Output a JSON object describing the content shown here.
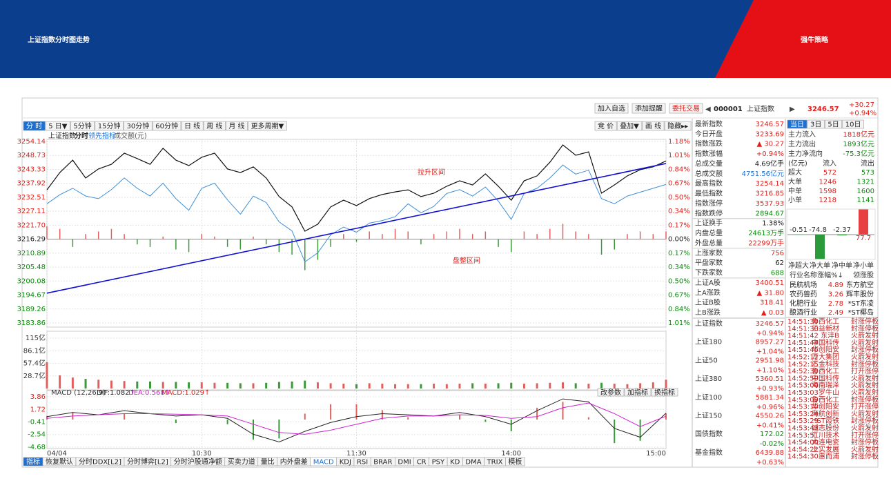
{
  "header": {
    "title": "上证指数分时图走势",
    "brand": "强牛策略"
  },
  "toolbar": {
    "buttons": [
      "加入自选",
      "添加提醒",
      "委托交易"
    ],
    "code": "000001",
    "name": "上证指数",
    "price": "3246.57",
    "change": "+30.27",
    "pct": "+0.94%"
  },
  "periods": [
    "分 时",
    "5 日▼",
    "5分钟",
    "15分钟",
    "30分钟",
    "60分钟",
    "日 线",
    "周 线",
    "月 线",
    "更多周期▼"
  ],
  "tools": [
    "竞 价",
    "叠加▼",
    "画 线",
    "隐藏▸▸"
  ],
  "legend": [
    "上证指数",
    "分时",
    "领先指标",
    "成交额(元)"
  ],
  "chart_data": {
    "type": "line",
    "categories": [
      "04/04",
      null,
      null,
      null,
      null,
      null,
      null,
      null,
      null,
      null,
      null,
      null,
      "10:30",
      null,
      null,
      null,
      null,
      null,
      null,
      null,
      null,
      null,
      null,
      null,
      "11:30",
      null,
      null,
      null,
      null,
      null,
      null,
      null,
      null,
      null,
      null,
      null,
      "14:00",
      null,
      null,
      null,
      null,
      null,
      null,
      null,
      null,
      null,
      null,
      null,
      "15:00"
    ],
    "ylim": [
      3183.86,
      3254.14
    ],
    "yticks": [
      3254.14,
      3248.73,
      3243.33,
      3237.92,
      3232.51,
      3227.11,
      {
        "value": 3221.7,
        "label": "3221.70"
      },
      3216.29,
      3210.89,
      3205.48,
      3200.08,
      3194.67,
      3189.26,
      3183.86
    ],
    "pct_ticks": [
      "1.18%",
      "1.01%",
      "0.84%",
      "0.67%",
      "0.50%",
      "0.34%",
      "0.17%",
      "0.00%",
      "0.17%",
      "0.34%",
      "0.50%",
      "0.67%",
      "0.84%",
      "1.01%"
    ],
    "series": [
      {
        "name": "上证指数",
        "color": "#111111",
        "values": [
          3235.4,
          3242.1,
          3246.9,
          3240.0,
          3243.5,
          3245.3,
          3249.6,
          3247.5,
          3245.3,
          3251.5,
          3246.9,
          3244.8,
          3248.0,
          3249.6,
          3243.5,
          3242.1,
          3244.3,
          3240.0,
          3232.8,
          3228.8,
          3219.4,
          3222.1,
          3228.8,
          3231.4,
          3229.3,
          3232.0,
          3233.6,
          3234.6,
          3235.4,
          3232.8,
          3234.1,
          3236.8,
          3238.9,
          3237.3,
          3241.6,
          3236.8,
          3231.4,
          3238.9,
          3240.8,
          3246.1,
          3252.8,
          3248.8,
          3250.1,
          3234.1,
          3237.3,
          3240.8,
          3243.2,
          3244.3,
          3246.57
        ]
      },
      {
        "name": "领先指标",
        "color": "#3d8fd8",
        "values": [
          3230.0,
          3233.5,
          3236.0,
          3233.0,
          3232.0,
          3235.5,
          3240.0,
          3236.0,
          3233.0,
          3238.0,
          3232.0,
          3227.5,
          3236.0,
          3238.0,
          3231.5,
          3226.0,
          3233.0,
          3230.5,
          3223.0,
          3219.5,
          3207.5,
          3211.0,
          3218.0,
          3221.0,
          3219.0,
          3222.5,
          3223.5,
          3225.0,
          3230.0,
          3226.5,
          3229.0,
          3234.0,
          3235.5,
          3233.0,
          3236.5,
          3231.0,
          3224.0,
          3234.0,
          3236.0,
          3240.0,
          3245.0,
          3241.5,
          3243.0,
          3232.0,
          3230.0,
          3233.0,
          3234.5,
          3236.0,
          3237.5
        ]
      }
    ],
    "lead_bars": [
      5,
      4,
      -3,
      2,
      3,
      4,
      2,
      -2,
      -3,
      1,
      -4,
      -5,
      2,
      1,
      -3,
      -4,
      1,
      -2,
      -5,
      -6,
      -12,
      -8,
      -3,
      2,
      -1,
      3,
      2,
      4,
      3,
      -2,
      2,
      3,
      4,
      2,
      3,
      -3,
      -5,
      3,
      2,
      4,
      6,
      3,
      2,
      -6,
      -4,
      2,
      3,
      2,
      3
    ],
    "trendline": {
      "color": "#1010d0",
      "values": [
        3195.4,
        3245.6
      ]
    },
    "annotations": [
      "拉升区间",
      "盘整区间"
    ]
  },
  "volume": {
    "ylim": [
      0,
      115
    ],
    "yticks": [
      {
        "value": 115,
        "label": "115亿"
      },
      {
        "value": 86.1,
        "label": "86.1亿"
      },
      {
        "value": 57.4,
        "label": "57.4亿"
      },
      {
        "value": 28.7,
        "label": "28.7亿"
      }
    ],
    "values": [
      60,
      30,
      25,
      22,
      20,
      18,
      17,
      16,
      16,
      15,
      15,
      14,
      14,
      13,
      13,
      12,
      12,
      13,
      15,
      16,
      18,
      14,
      12,
      11,
      10,
      12,
      11,
      10,
      10,
      10,
      11,
      10,
      11,
      12,
      11,
      12,
      13,
      11,
      12,
      13,
      14,
      12,
      11,
      13,
      11,
      10,
      12,
      14,
      20
    ]
  },
  "macd": {
    "title": "MACD (12,26,9)",
    "dif_label": "DIF:1.082↑",
    "dea_label": "DEA:0.568↑",
    "macd_label": "MACD:1.029↑",
    "buttons": [
      "改参数",
      "加指标",
      "换指标"
    ],
    "ylim": [
      -4.68,
      3.86
    ],
    "yticks": [
      3.86,
      1.72,
      -0.41,
      -2.54,
      -4.68
    ],
    "dif": [
      0.5,
      1.2,
      0.8,
      1.5,
      1.0,
      0.6,
      0.8,
      0.2,
      -2.5,
      -3.8,
      -2.0,
      -0.5,
      0.5,
      1.0,
      0.8,
      0.6,
      1.2,
      0.5,
      -0.8,
      1.5,
      3.5,
      3.0,
      -1.5,
      -3.0,
      1.082
    ],
    "dea": [
      0.2,
      0.6,
      0.8,
      1.0,
      1.0,
      0.9,
      0.8,
      0.6,
      -0.8,
      -2.2,
      -2.5,
      -1.8,
      -0.8,
      0.2,
      0.6,
      0.6,
      0.8,
      0.7,
      0.2,
      0.5,
      2.0,
      2.8,
      1.0,
      -1.2,
      0.568
    ],
    "hist": [
      0.6,
      1.2,
      0,
      1.0,
      0,
      -0.6,
      0,
      -0.8,
      -3.4,
      -3.2,
      1.0,
      2.6,
      2.6,
      1.6,
      0.4,
      0,
      0.8,
      -0.4,
      -2.0,
      2.0,
      3.0,
      0.4,
      -4.0,
      -3.6,
      1.029
    ]
  },
  "bottom_tabs": [
    "指标",
    "恢复默认",
    "分时DDX[L2]",
    "分时博弈[L2]",
    "分时沪股通净额",
    "买卖力道",
    "量比",
    "内外盘差",
    "MACD",
    "KDJ",
    "RSI",
    "BRAR",
    "DMI",
    "CR",
    "PSY",
    "KD",
    "DMA",
    "TRIX",
    "模板"
  ],
  "quote": [
    {
      "label": "最新指数",
      "value": "3246.57"
    },
    {
      "label": "今日开盘",
      "value": "3233.69"
    },
    {
      "label": "指数涨跌",
      "value": "▲ 30.27"
    },
    {
      "label": "指数涨幅",
      "value": "+0.94%"
    },
    {
      "label": "总成交量",
      "value": "4.69亿手",
      "color": "#222222"
    },
    {
      "label": "总成交额",
      "value": "4751.56亿元",
      "color": "#1e6fd0"
    },
    {
      "label": "最高指数",
      "value": "3254.14"
    },
    {
      "label": "最低指数",
      "value": "3216.85"
    },
    {
      "label": "指数涨停",
      "value": "3537.93"
    },
    {
      "label": "指数跌停",
      "value": "2894.67",
      "color": "#0a8a0a"
    },
    {
      "label": "上证换手",
      "value": "1.38%",
      "color": "#222222"
    },
    {
      "label": "内盘总量",
      "value": "24613万手",
      "color": "#0a8a0a"
    },
    {
      "label": "外盘总量",
      "value": "22299万手"
    },
    {
      "label": "上涨家数",
      "value": "756"
    },
    {
      "label": "平盘家数",
      "value": "62",
      "color": "#222222"
    },
    {
      "label": "下跌家数",
      "value": "688",
      "color": "#0a8a0a"
    },
    {
      "label": "上证A股",
      "value": "3400.51"
    },
    {
      "label": "上A涨跌",
      "value": "▲ 31.80"
    },
    {
      "label": "上证B股",
      "value": "318.41"
    },
    {
      "label": "上B涨跌",
      "value": "▲ 0.03"
    }
  ],
  "indices": [
    {
      "name": "上证指数",
      "value": "3246.57",
      "pct": "+0.94%"
    },
    {
      "name": "上证180",
      "value": "8957.27",
      "pct": "+1.04%"
    },
    {
      "name": "上证50",
      "value": "2951.98",
      "pct": "+1.10%"
    },
    {
      "name": "上证380",
      "value": "5360.51",
      "pct": "+0.93%"
    },
    {
      "name": "上证100",
      "value": "5881.34",
      "pct": "+0.96%"
    },
    {
      "name": "上证150",
      "value": "4550.26",
      "pct": "+0.41%"
    },
    {
      "name": "国债指数",
      "value": "172.02",
      "pct": "-0.02%"
    },
    {
      "name": "基金指数",
      "value": "6439.88",
      "pct": "+0.63%"
    }
  ],
  "flow": {
    "tabs": [
      "当日",
      "3日",
      "5日",
      "10日"
    ],
    "summary": [
      {
        "label": "主力流入",
        "value": "1818亿元"
      },
      {
        "label": "主力流出",
        "value": "1893亿元"
      },
      {
        "label": "主力净流向",
        "value": "-75.3亿元"
      }
    ],
    "header": [
      "(亿元)",
      "流入",
      "流出"
    ],
    "rows": [
      [
        "超大",
        "572",
        "573"
      ],
      [
        "大单",
        "1246",
        "1321"
      ],
      [
        "中单",
        "1598",
        "1600"
      ],
      [
        "小单",
        "1218",
        "1141"
      ]
    ],
    "net": {
      "categories": [
        "净超大",
        "净大单",
        "净中单",
        "净小单"
      ],
      "values": [
        -0.51,
        -74.8,
        -2.37,
        77.7
      ]
    }
  },
  "industry": {
    "header": [
      "行业名称",
      "涨幅%↓",
      "领涨股"
    ],
    "rows": [
      [
        "民航机场",
        "4.89",
        "东方航空"
      ],
      [
        "农药兽药",
        "3.26",
        "辉丰股份"
      ],
      [
        "化肥行业",
        "2.78",
        "*ST东凌"
      ],
      [
        "酿酒行业",
        "2.49",
        "*ST椰岛"
      ]
    ]
  },
  "ticker": [
    [
      "14:51:30",
      "鲁西化工",
      "封涨停板"
    ],
    [
      "14:51:30",
      "三益新材",
      "封涨停板"
    ],
    [
      "14:51:42",
      "东沣B",
      "火箭发射"
    ],
    [
      "14:51:44",
      "中国科传",
      "火箭发射"
    ],
    [
      "14:51:46",
      "华创阳安",
      "封涨停板"
    ],
    [
      "14:52:12",
      "万大集团",
      "火箭发射"
    ],
    [
      "14:52:15",
      "汇金科技",
      "封涨停板"
    ],
    [
      "14:52:30",
      "鲁西化工",
      "打开涨停"
    ],
    [
      "14:52:50",
      "中国科传",
      "火箭发射"
    ],
    [
      "14:53:00",
      "海南瑞泽",
      "火箭发射"
    ],
    [
      "14:53:03",
      "罗牛山",
      "火箭发射"
    ],
    [
      "14:53:09",
      "鲁西化工",
      "封涨停板"
    ],
    [
      "14:53:10",
      "华创阳安",
      "打开涨停"
    ],
    [
      "14:53:24",
      "海航创新",
      "火箭发射"
    ],
    [
      "14:53:29",
      "*ST霞铁",
      "封涨停板"
    ],
    [
      "14:53:43",
      "诚志股份",
      "火箭发射"
    ],
    [
      "14:53:51",
      "汇川技术",
      "打开涨停"
    ],
    [
      "14:54:00",
      "大连电瓷",
      "封涨停板"
    ],
    [
      "14:54:22",
      "上实发展",
      "火箭发射"
    ],
    [
      "14:54:30",
      "惠而浦",
      "封涨停板"
    ]
  ]
}
